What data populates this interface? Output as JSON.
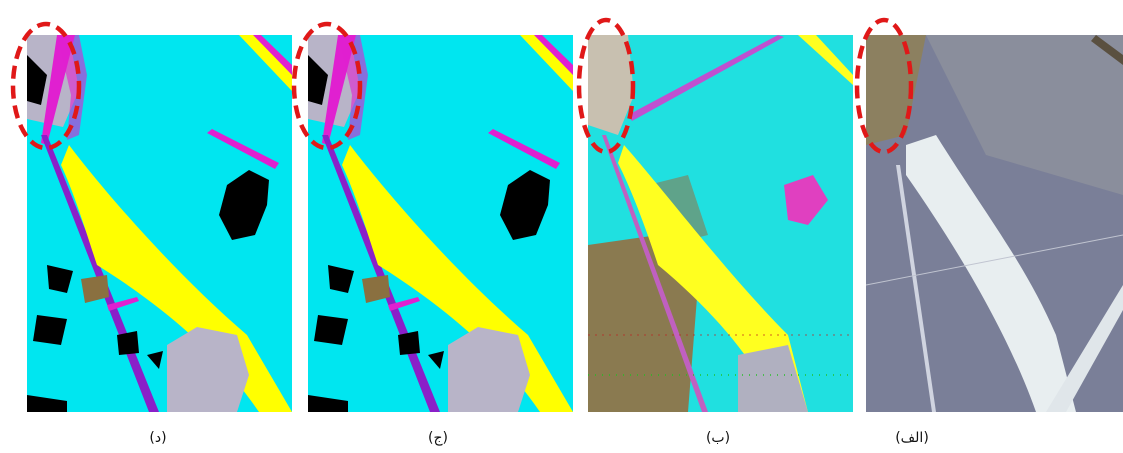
{
  "panels": [
    {
      "label": "(د)"
    },
    {
      "label": "(ج)"
    },
    {
      "label": "(ب)"
    },
    {
      "label": "(الف)"
    }
  ]
}
